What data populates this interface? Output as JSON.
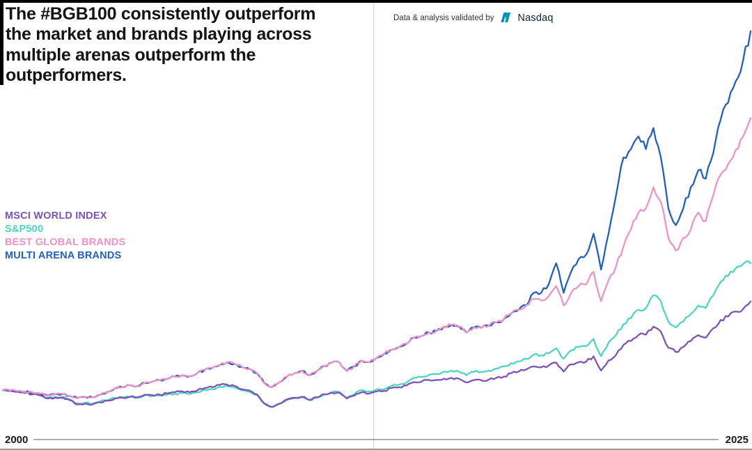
{
  "header": {
    "title": "The #BGB100 consistently outperform the market and brands playing across multiple arenas outperform the outperformers."
  },
  "validation": {
    "text": "Data & analysis validated by",
    "brand": "Nasdaq",
    "brand_color": "#0092BC"
  },
  "axis": {
    "x_start_label": "2000",
    "x_end_label": "2025"
  },
  "chart_data": {
    "type": "line",
    "title": "The #BGB100 consistently outperform the market and brands playing across multiple arenas outperform the outperformers.",
    "x_range": [
      2000,
      2025
    ],
    "x_sampling": "quarterly",
    "baseline_value": 100,
    "value_range_shown": [
      55,
      949
    ],
    "grid": {
      "vertical_line_year": 2012.4,
      "horizontal_grid": false
    },
    "legend_position": "middle-left",
    "axis_line_color": "#8f8f8f",
    "grid_line_color": "#cbcbcb",
    "series": [
      {
        "name": "MSCI WORLD INDEX",
        "color": "#7B53BA",
        "end_value": 310,
        "values": [
          100,
          98,
          96,
          93,
          90,
          87,
          80,
          82,
          82,
          76,
          66,
          68,
          66,
          71,
          75,
          80,
          82,
          84,
          83,
          89,
          88,
          89,
          92,
          95,
          97,
          95,
          99,
          105,
          107,
          112,
          113,
          110,
          102,
          99,
          90,
          68,
          60,
          68,
          78,
          82,
          84,
          77,
          83,
          90,
          94,
          94,
          80,
          87,
          95,
          92,
          97,
          98,
          105,
          107,
          111,
          119,
          120,
          124,
          124,
          127,
          129,
          127,
          118,
          124,
          123,
          125,
          129,
          132,
          140,
          144,
          149,
          156,
          154,
          158,
          165,
          144,
          161,
          166,
          167,
          180,
          146,
          170,
          183,
          207,
          216,
          230,
          231,
          250,
          238,
          200,
          190,
          202,
          216,
          230,
          224,
          246,
          266,
          274,
          286,
          292,
          310
        ]
      },
      {
        "name": "S&P500",
        "color": "#4ED5C0",
        "end_value": 400,
        "values": [
          100,
          99,
          97,
          95,
          92,
          89,
          82,
          84,
          84,
          78,
          68,
          70,
          68,
          73,
          76,
          81,
          83,
          84,
          82,
          88,
          86,
          87,
          89,
          91,
          93,
          91,
          95,
          101,
          102,
          108,
          109,
          106,
          99,
          96,
          88,
          68,
          60,
          67,
          77,
          81,
          84,
          76,
          82,
          90,
          95,
          95,
          82,
          90,
          100,
          97,
          102,
          102,
          110,
          113,
          118,
          129,
          131,
          136,
          138,
          144,
          146,
          144,
          135,
          143,
          143,
          146,
          151,
          156,
          164,
          168,
          174,
          184,
          182,
          187,
          199,
          174,
          194,
          202,
          204,
          221,
          180,
          212,
          230,
          256,
          270,
          290,
          294,
          324,
          310,
          262,
          248,
          262,
          280,
          300,
          294,
          324,
          356,
          370,
          388,
          398,
          400
        ]
      },
      {
        "name": "BEST GLOBAL BRANDS",
        "color": "#F092C4",
        "end_value": 743,
        "values": [
          100,
          99,
          98,
          96,
          94,
          92,
          87,
          90,
          91,
          86,
          81,
          84,
          83,
          89,
          96,
          104,
          107,
          111,
          109,
          117,
          120,
          123,
          127,
          132,
          135,
          133,
          140,
          148,
          152,
          159,
          166,
          162,
          155,
          150,
          140,
          116,
          107,
          119,
          132,
          140,
          146,
          135,
          145,
          157,
          165,
          166,
          145,
          156,
          170,
          166,
          176,
          186,
          196,
          202,
          210,
          224,
          228,
          236,
          240,
          250,
          254,
          250,
          236,
          248,
          247,
          252,
          260,
          268,
          282,
          290,
          300,
          316,
          312,
          322,
          346,
          300,
          330,
          346,
          350,
          380,
          310,
          360,
          392,
          440,
          480,
          520,
          530,
          580,
          545,
          460,
          430,
          460,
          480,
          520,
          500,
          560,
          610,
          635,
          668,
          700,
          743
        ]
      },
      {
        "name": "MULTI ARENA BRANDS",
        "color": "#1F5FC4",
        "end_value": 949,
        "values": [
          100,
          99,
          98,
          96,
          94,
          92,
          87,
          90,
          91,
          86,
          81,
          84,
          83,
          89,
          96,
          104,
          107,
          111,
          109,
          117,
          120,
          123,
          127,
          132,
          135,
          133,
          140,
          148,
          152,
          159,
          166,
          162,
          155,
          150,
          140,
          116,
          107,
          119,
          132,
          140,
          146,
          135,
          145,
          157,
          165,
          166,
          145,
          156,
          170,
          166,
          176,
          186,
          196,
          202,
          210,
          224,
          228,
          236,
          240,
          250,
          254,
          250,
          236,
          248,
          247,
          252,
          260,
          268,
          282,
          290,
          300,
          330,
          330,
          350,
          400,
          330,
          380,
          410,
          420,
          470,
          385,
          470,
          560,
          650,
          670,
          700,
          670,
          720,
          650,
          530,
          490,
          530,
          580,
          620,
          600,
          660,
          740,
          780,
          830,
          880,
          949
        ]
      }
    ]
  }
}
